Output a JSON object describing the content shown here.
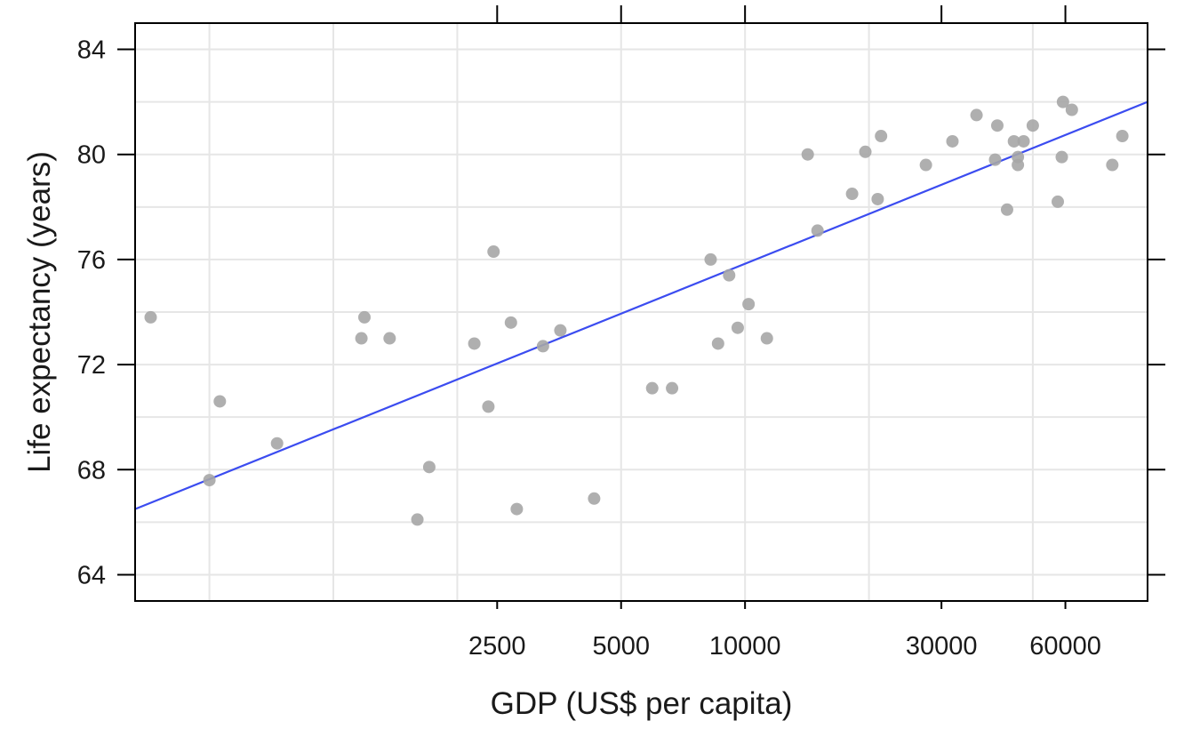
{
  "chart_data": {
    "type": "scatter",
    "title": "",
    "xlabel": "GDP (US$ per capita)",
    "ylabel": "Life expectancy (years)",
    "x_scale": "log",
    "xlim": [
      330,
      95000
    ],
    "ylim": [
      63,
      85
    ],
    "x_ticks": [
      2500,
      5000,
      10000,
      30000,
      60000
    ],
    "x_tick_labels": [
      "2500",
      "5000",
      "10000",
      "30000",
      "60000"
    ],
    "y_ticks": [
      64,
      68,
      72,
      76,
      80,
      84
    ],
    "y_tick_labels": [
      "64",
      "68",
      "72",
      "76",
      "80",
      "84"
    ],
    "grid": true,
    "colors": {
      "points": "#a6a6a6",
      "fit_line": "#3b4cf0",
      "grid": "#e6e6e6",
      "axis": "#000000"
    },
    "points": [
      {
        "x": 360,
        "y": 73.8
      },
      {
        "x": 530,
        "y": 70.6
      },
      {
        "x": 500,
        "y": 67.6
      },
      {
        "x": 730,
        "y": 69.0
      },
      {
        "x": 1190,
        "y": 73.8
      },
      {
        "x": 1170,
        "y": 73.0
      },
      {
        "x": 1370,
        "y": 73.0
      },
      {
        "x": 1600,
        "y": 66.1
      },
      {
        "x": 1710,
        "y": 68.1
      },
      {
        "x": 2200,
        "y": 72.8
      },
      {
        "x": 2380,
        "y": 70.4
      },
      {
        "x": 2450,
        "y": 76.3
      },
      {
        "x": 2700,
        "y": 73.6
      },
      {
        "x": 2790,
        "y": 66.5
      },
      {
        "x": 3230,
        "y": 72.7
      },
      {
        "x": 3560,
        "y": 73.3
      },
      {
        "x": 4300,
        "y": 66.9
      },
      {
        "x": 5950,
        "y": 71.1
      },
      {
        "x": 6650,
        "y": 71.1
      },
      {
        "x": 8250,
        "y": 76.0
      },
      {
        "x": 8600,
        "y": 72.8
      },
      {
        "x": 9150,
        "y": 75.4
      },
      {
        "x": 9600,
        "y": 73.4
      },
      {
        "x": 10200,
        "y": 74.3
      },
      {
        "x": 11300,
        "y": 73.0
      },
      {
        "x": 14200,
        "y": 80.0
      },
      {
        "x": 15000,
        "y": 77.1
      },
      {
        "x": 18200,
        "y": 78.5
      },
      {
        "x": 19600,
        "y": 80.1
      },
      {
        "x": 21000,
        "y": 78.3
      },
      {
        "x": 21400,
        "y": 80.7
      },
      {
        "x": 27500,
        "y": 79.6
      },
      {
        "x": 31900,
        "y": 80.5
      },
      {
        "x": 36500,
        "y": 81.5
      },
      {
        "x": 40500,
        "y": 79.8
      },
      {
        "x": 41000,
        "y": 81.1
      },
      {
        "x": 43300,
        "y": 77.9
      },
      {
        "x": 45000,
        "y": 80.5
      },
      {
        "x": 46000,
        "y": 79.9
      },
      {
        "x": 46000,
        "y": 79.6
      },
      {
        "x": 47500,
        "y": 80.5
      },
      {
        "x": 50000,
        "y": 81.1
      },
      {
        "x": 57500,
        "y": 78.2
      },
      {
        "x": 58800,
        "y": 79.9
      },
      {
        "x": 59200,
        "y": 82.0
      },
      {
        "x": 62200,
        "y": 81.7
      },
      {
        "x": 78000,
        "y": 79.6
      },
      {
        "x": 82500,
        "y": 80.7
      }
    ],
    "fit_line": [
      {
        "x": 330,
        "y": 66.5
      },
      {
        "x": 95000,
        "y": 82.0
      }
    ]
  }
}
